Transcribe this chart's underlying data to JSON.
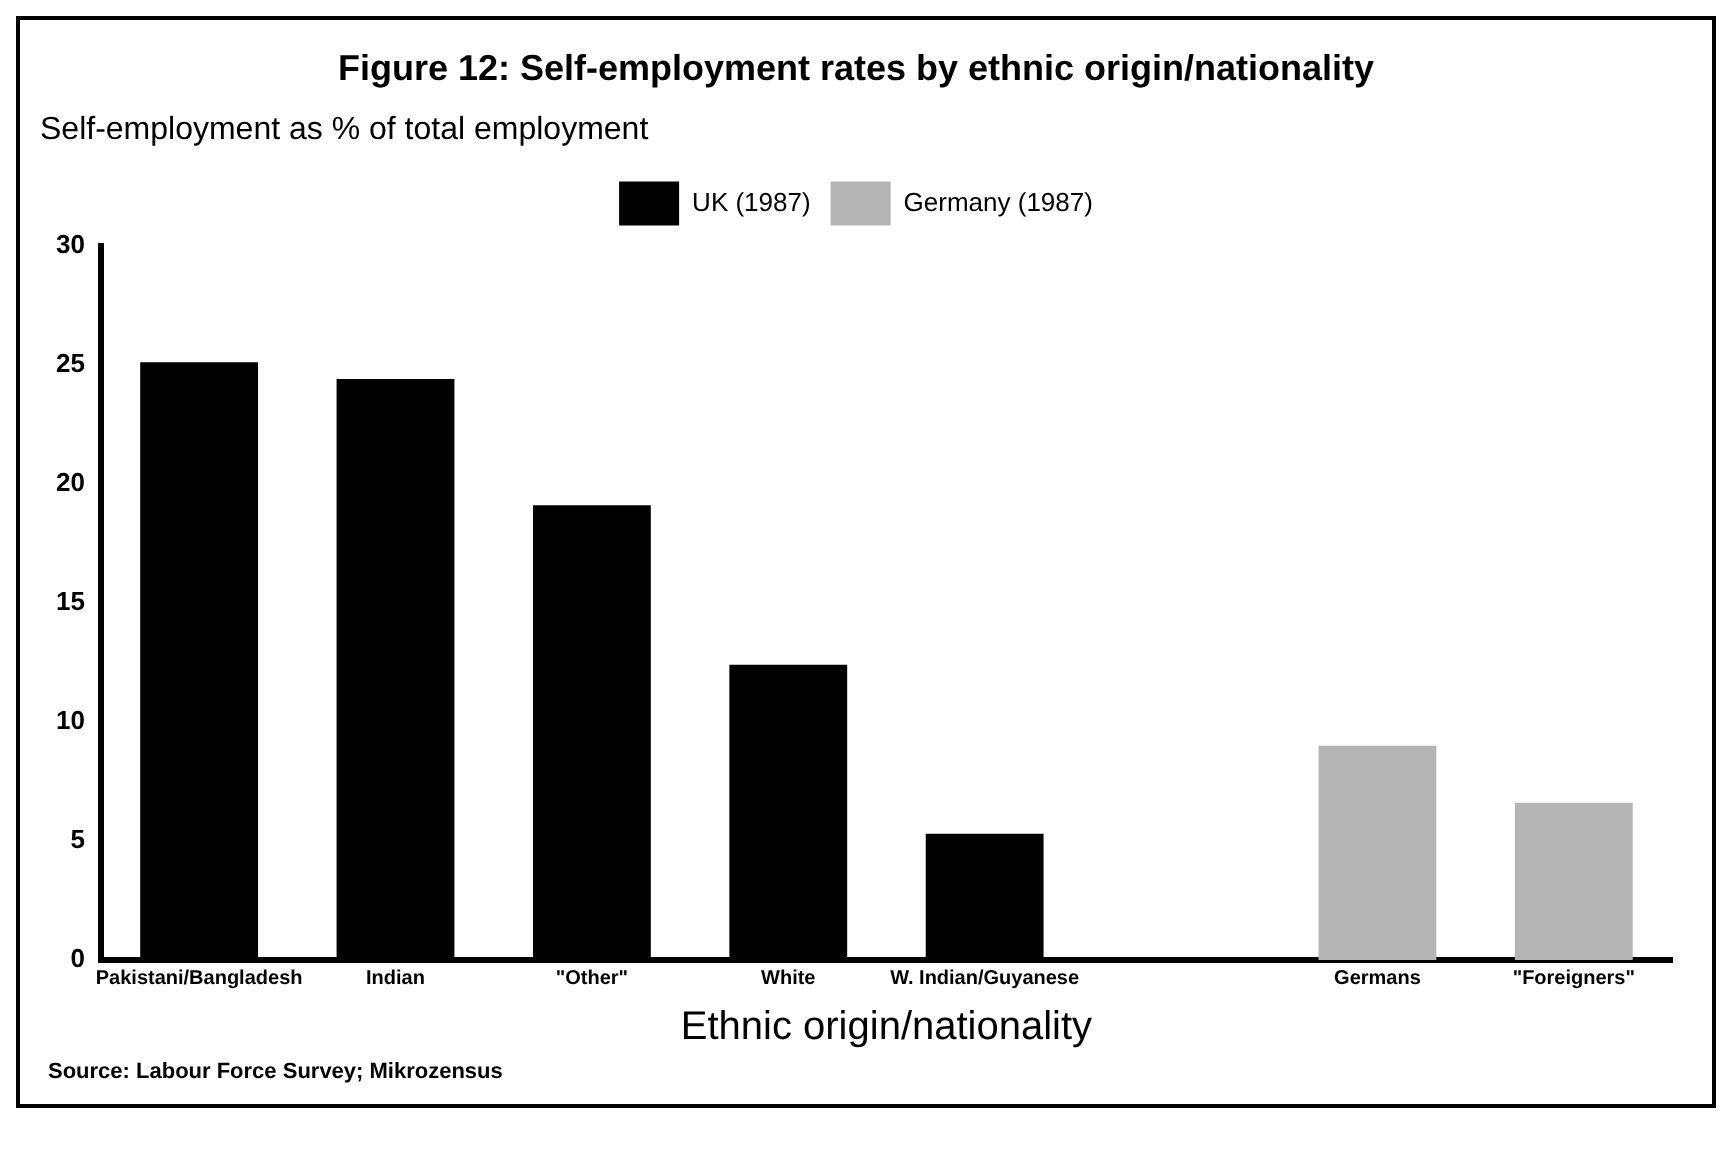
{
  "chart_data": {
    "type": "bar",
    "title": "Figure 12: Self-employment rates by ethnic origin/nationality",
    "ylabel": "Self-employment as % of total employment",
    "xlabel": "Ethnic origin/nationality",
    "categories": [
      "Pakistani/Bangladesh",
      "Indian",
      "\"Other\"",
      "White",
      "W. Indian/Guyanese",
      null,
      "Germans",
      "\"Foreigners\""
    ],
    "series": [
      {
        "name": "UK (1987)",
        "color": "#000000",
        "values": [
          25.1,
          24.4,
          19.1,
          12.4,
          5.3,
          null,
          null,
          null
        ]
      },
      {
        "name": "Germany (1987)",
        "color": "#b4b4b4",
        "values": [
          null,
          null,
          null,
          null,
          null,
          null,
          9.0,
          6.6
        ]
      }
    ],
    "ylim": [
      0,
      30
    ],
    "yticks": [
      0,
      5,
      10,
      15,
      20,
      25,
      30
    ],
    "grid": false,
    "legend": "top",
    "annotations": [
      "Source: Labour Force Survey; Mikrozensus"
    ]
  }
}
